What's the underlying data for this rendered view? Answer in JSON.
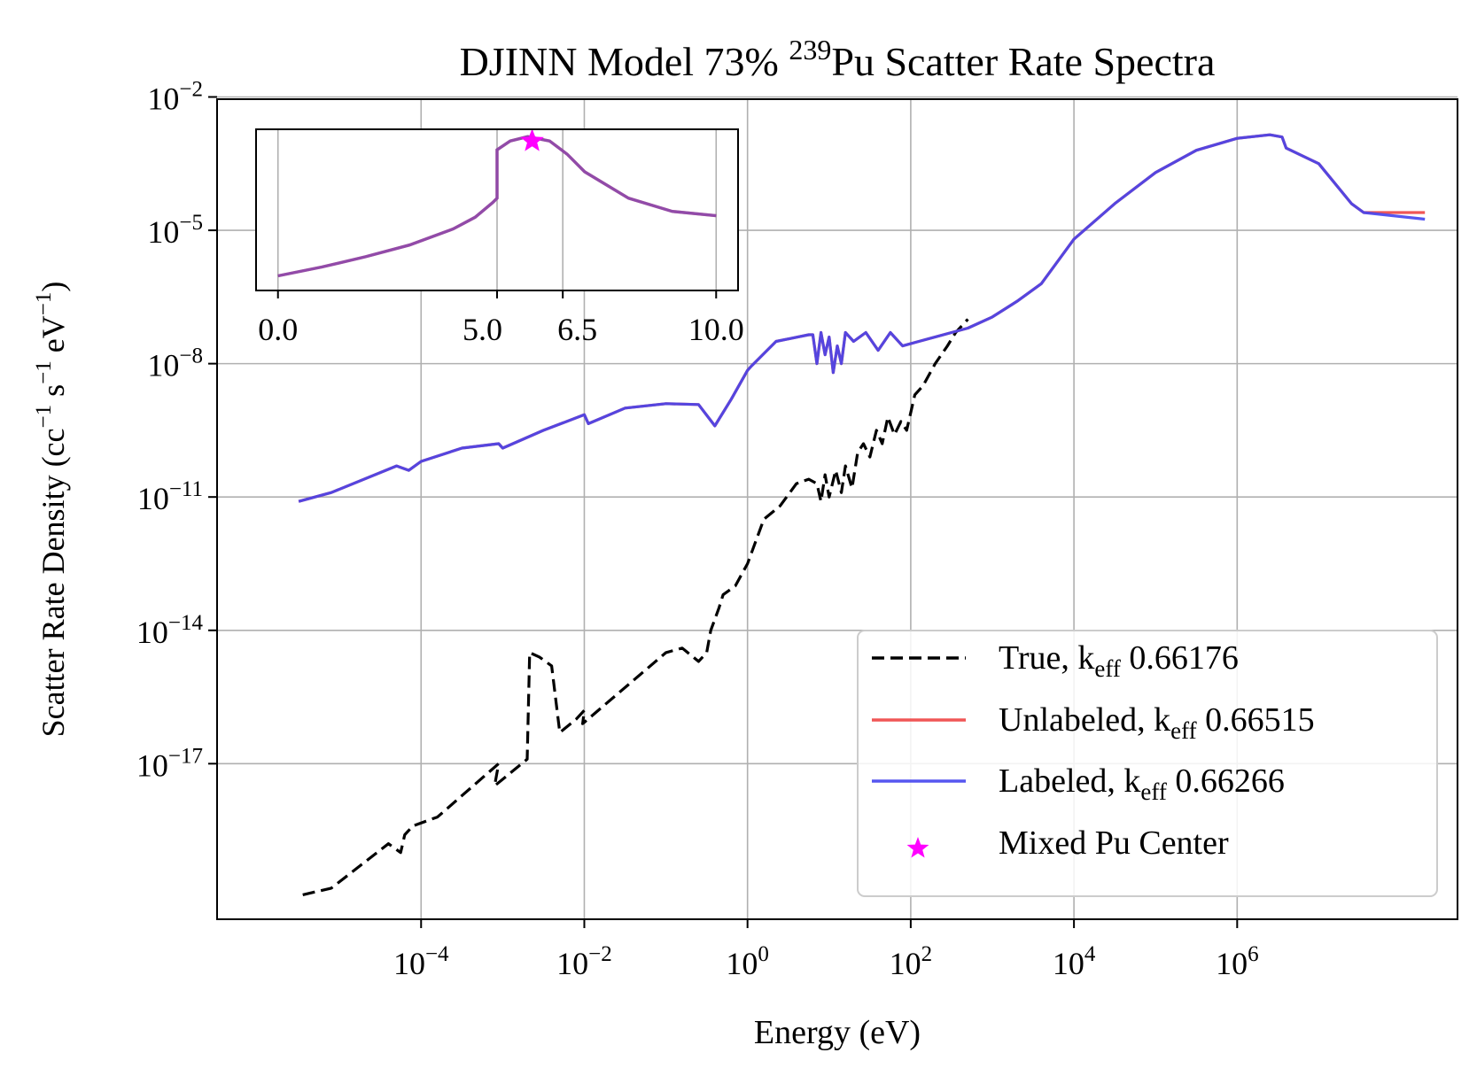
{
  "chart_data": {
    "type": "line",
    "title": {
      "prefix": "DJINN Model 73% ",
      "isotope_mass": "239",
      "suffix": "Pu Scatter Rate Spectra"
    },
    "xlabel": "Energy (eV)",
    "ylabel": {
      "main": "Scatter Rate Density (cc",
      "sup1": "−1",
      "mid1": " s",
      "sup2": "−1",
      "mid2": " eV",
      "sup3": "−1",
      "end": ")"
    },
    "xscale": "log",
    "yscale": "log",
    "xlim_log10": [
      -6.5,
      8.7
    ],
    "ylim_log10": [
      -20.5,
      -2.05
    ],
    "x_ticks": [
      {
        "base": "10",
        "exp": "−4",
        "log": -4
      },
      {
        "base": "10",
        "exp": "−2",
        "log": -2
      },
      {
        "base": "10",
        "exp": "0",
        "log": 0
      },
      {
        "base": "10",
        "exp": "2",
        "log": 2
      },
      {
        "base": "10",
        "exp": "4",
        "log": 4
      },
      {
        "base": "10",
        "exp": "6",
        "log": 6
      }
    ],
    "y_ticks": [
      {
        "base": "10",
        "exp": "−2",
        "log": -2
      },
      {
        "base": "10",
        "exp": "−5",
        "log": -5
      },
      {
        "base": "10",
        "exp": "−8",
        "log": -8
      },
      {
        "base": "10",
        "exp": "−11",
        "log": -11
      },
      {
        "base": "10",
        "exp": "−14",
        "log": -14
      },
      {
        "base": "10",
        "exp": "−17",
        "log": -17
      }
    ],
    "grid": true,
    "legend": {
      "position": "lower-right",
      "entries": [
        {
          "name_pre": "True, k",
          "name_sub": "eff",
          "name_post": " 0.66176",
          "color": "#000000",
          "style": "dashed"
        },
        {
          "name_pre": "Unlabeled, k",
          "name_sub": "eff",
          "name_post": " 0.66515",
          "color": "#ee4444",
          "style": "solid"
        },
        {
          "name_pre": "Labeled, k",
          "name_sub": "eff",
          "name_post": " 0.66266",
          "color": "#4444ee",
          "style": "solid"
        },
        {
          "name_pre": "Mixed Pu Center",
          "name_sub": "",
          "name_post": "",
          "color": "#ff00ff",
          "style": "star"
        }
      ]
    },
    "series": [
      {
        "name": "True",
        "color": "#000000",
        "style": "dashed",
        "log_x": [
          -5.45,
          -5.1,
          -4.4,
          -4.25,
          -4.2,
          -4.1,
          -3.8,
          -3.3,
          -3.05,
          -3.1,
          -2.7,
          -2.67,
          -2.55,
          -2.4,
          -2.3,
          -2.1,
          -2.0,
          -2.02,
          -1.0,
          -0.8,
          -0.6,
          -0.5,
          -0.45,
          -0.35,
          -0.3,
          -0.15,
          0.0,
          0.2,
          0.4,
          0.6,
          0.75,
          0.85,
          0.9,
          0.95,
          1.0,
          1.08,
          1.15,
          1.2,
          1.28,
          1.35,
          1.42,
          1.5,
          1.58,
          1.65,
          1.72,
          1.8,
          1.88,
          1.95,
          2.05,
          2.15,
          2.3,
          2.45,
          2.55,
          2.7
        ],
        "log_y": [
          -19.95,
          -19.8,
          -18.8,
          -19.0,
          -18.6,
          -18.4,
          -18.2,
          -17.4,
          -17.0,
          -17.5,
          -16.9,
          -14.5,
          -14.6,
          -14.8,
          -16.3,
          -16.0,
          -15.8,
          -16.1,
          -14.5,
          -14.4,
          -14.7,
          -14.5,
          -14.0,
          -13.5,
          -13.2,
          -13.0,
          -12.5,
          -11.5,
          -11.2,
          -10.7,
          -10.6,
          -10.7,
          -11.1,
          -10.5,
          -11.0,
          -10.4,
          -10.9,
          -10.3,
          -10.8,
          -10.0,
          -9.8,
          -10.1,
          -9.5,
          -9.8,
          -9.2,
          -9.6,
          -9.3,
          -9.5,
          -8.7,
          -8.5,
          -8.0,
          -7.6,
          -7.3,
          -7.0
        ]
      },
      {
        "name": "Unlabeled",
        "color": "#ee4444",
        "style": "solid",
        "log_x": [
          -5.5,
          -5.1,
          -4.3,
          -4.15,
          -4.0,
          -3.5,
          -3.05,
          -3.0,
          -2.5,
          -2.0,
          -1.95,
          -1.5,
          -1.0,
          -0.6,
          -0.4,
          -0.2,
          0.0,
          0.05,
          0.35,
          0.75,
          0.8,
          0.85,
          0.9,
          0.95,
          1.0,
          1.05,
          1.1,
          1.15,
          1.2,
          1.3,
          1.45,
          1.6,
          1.75,
          1.9,
          2.1,
          2.5,
          2.7,
          3.0,
          3.3,
          3.6,
          4.0,
          4.5,
          5.0,
          5.5,
          6.0,
          6.4,
          6.55,
          6.6,
          7.0,
          7.4,
          7.55,
          8.3
        ],
        "log_y": [
          -11.1,
          -10.9,
          -10.3,
          -10.4,
          -10.2,
          -9.9,
          -9.8,
          -9.9,
          -9.5,
          -9.15,
          -9.35,
          -9.0,
          -8.9,
          -8.92,
          -9.4,
          -8.8,
          -8.15,
          -8.05,
          -7.5,
          -7.35,
          -7.35,
          -8.0,
          -7.3,
          -7.8,
          -7.4,
          -8.2,
          -7.6,
          -8.0,
          -7.3,
          -7.5,
          -7.3,
          -7.7,
          -7.3,
          -7.6,
          -7.5,
          -7.3,
          -7.2,
          -6.95,
          -6.6,
          -6.2,
          -5.2,
          -4.4,
          -3.7,
          -3.2,
          -2.93,
          -2.85,
          -2.9,
          -3.15,
          -3.5,
          -4.4,
          -4.6,
          -4.6
        ]
      },
      {
        "name": "Labeled",
        "color": "#4444ee",
        "style": "solid",
        "log_x": [
          -5.5,
          -5.1,
          -4.3,
          -4.15,
          -4.0,
          -3.5,
          -3.05,
          -3.0,
          -2.5,
          -2.0,
          -1.95,
          -1.5,
          -1.0,
          -0.6,
          -0.4,
          -0.2,
          0.0,
          0.05,
          0.35,
          0.75,
          0.8,
          0.85,
          0.9,
          0.95,
          1.0,
          1.05,
          1.1,
          1.15,
          1.2,
          1.3,
          1.45,
          1.6,
          1.75,
          1.9,
          2.1,
          2.5,
          2.7,
          3.0,
          3.3,
          3.6,
          4.0,
          4.5,
          5.0,
          5.5,
          6.0,
          6.4,
          6.55,
          6.6,
          7.0,
          7.4,
          7.55,
          8.3
        ],
        "log_y": [
          -11.1,
          -10.9,
          -10.3,
          -10.4,
          -10.2,
          -9.9,
          -9.8,
          -9.9,
          -9.5,
          -9.15,
          -9.35,
          -9.0,
          -8.9,
          -8.92,
          -9.4,
          -8.8,
          -8.15,
          -8.05,
          -7.5,
          -7.35,
          -7.35,
          -8.0,
          -7.3,
          -7.8,
          -7.4,
          -8.2,
          -7.6,
          -8.0,
          -7.3,
          -7.5,
          -7.3,
          -7.7,
          -7.3,
          -7.6,
          -7.5,
          -7.3,
          -7.2,
          -6.95,
          -6.6,
          -6.2,
          -5.2,
          -4.4,
          -3.7,
          -3.2,
          -2.93,
          -2.85,
          -2.9,
          -3.15,
          -3.5,
          -4.4,
          -4.6,
          -4.75
        ]
      }
    ],
    "inset": {
      "xlim": [
        -0.5,
        10.5
      ],
      "ylim": [
        -0.05,
        1.05
      ],
      "x_ticks": [
        "0.0",
        "5.0",
        "6.5",
        "10.0"
      ],
      "x_tick_values": [
        0.0,
        5.0,
        6.5,
        10.0
      ],
      "x": [
        0.0,
        1.0,
        2.0,
        3.0,
        4.0,
        4.5,
        4.9,
        5.0,
        5.0,
        5.3,
        5.7,
        6.2,
        6.6,
        7.0,
        8.0,
        9.0,
        10.0
      ],
      "y": [
        0.05,
        0.11,
        0.18,
        0.26,
        0.37,
        0.45,
        0.55,
        0.58,
        0.91,
        0.97,
        1.0,
        0.97,
        0.88,
        0.76,
        0.58,
        0.49,
        0.46
      ],
      "marker": {
        "x": 5.8,
        "y": 0.97,
        "label": "Mixed Pu Center"
      }
    }
  }
}
